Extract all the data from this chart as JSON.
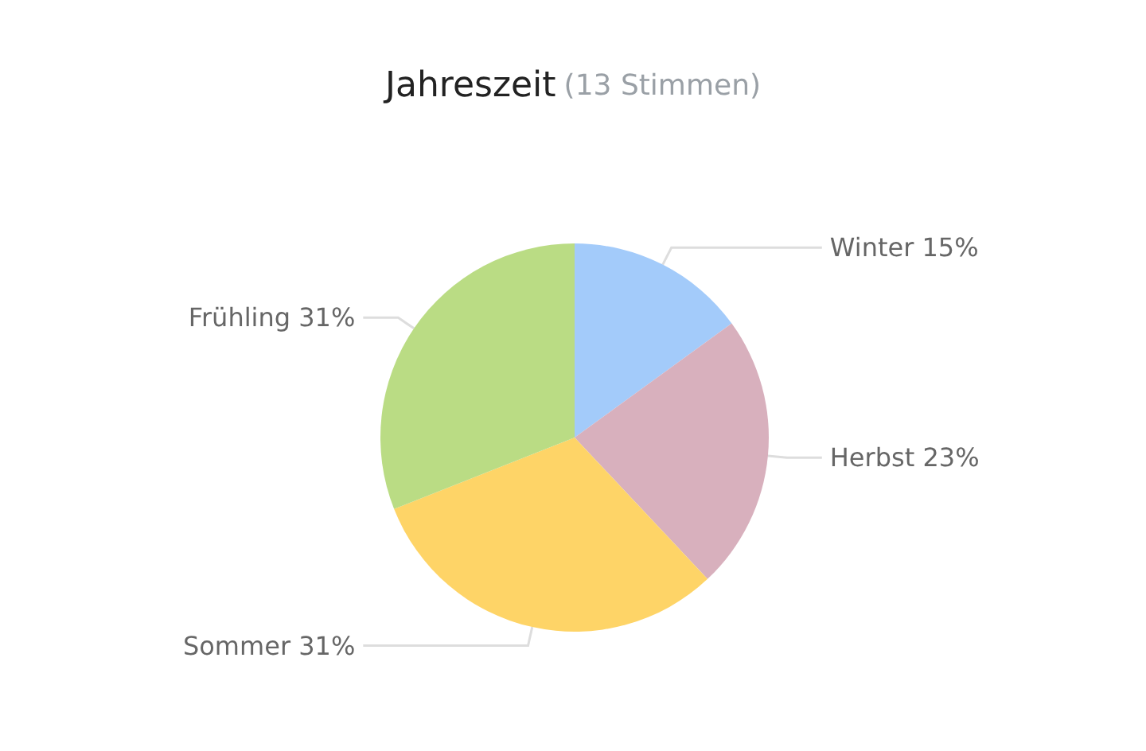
{
  "chart_data": {
    "type": "pie",
    "title": "Jahreszeit",
    "subtitle": "(13 Stimmen)",
    "categories": [
      "Winter",
      "Herbst",
      "Sommer",
      "Frühling"
    ],
    "values": [
      15,
      23,
      31,
      31
    ],
    "value_labels": [
      "15%",
      "23%",
      "31%",
      "31%"
    ],
    "colors": [
      "#a3cbfa",
      "#d8b0bd",
      "#fed467",
      "#badc84"
    ],
    "legend": false
  }
}
